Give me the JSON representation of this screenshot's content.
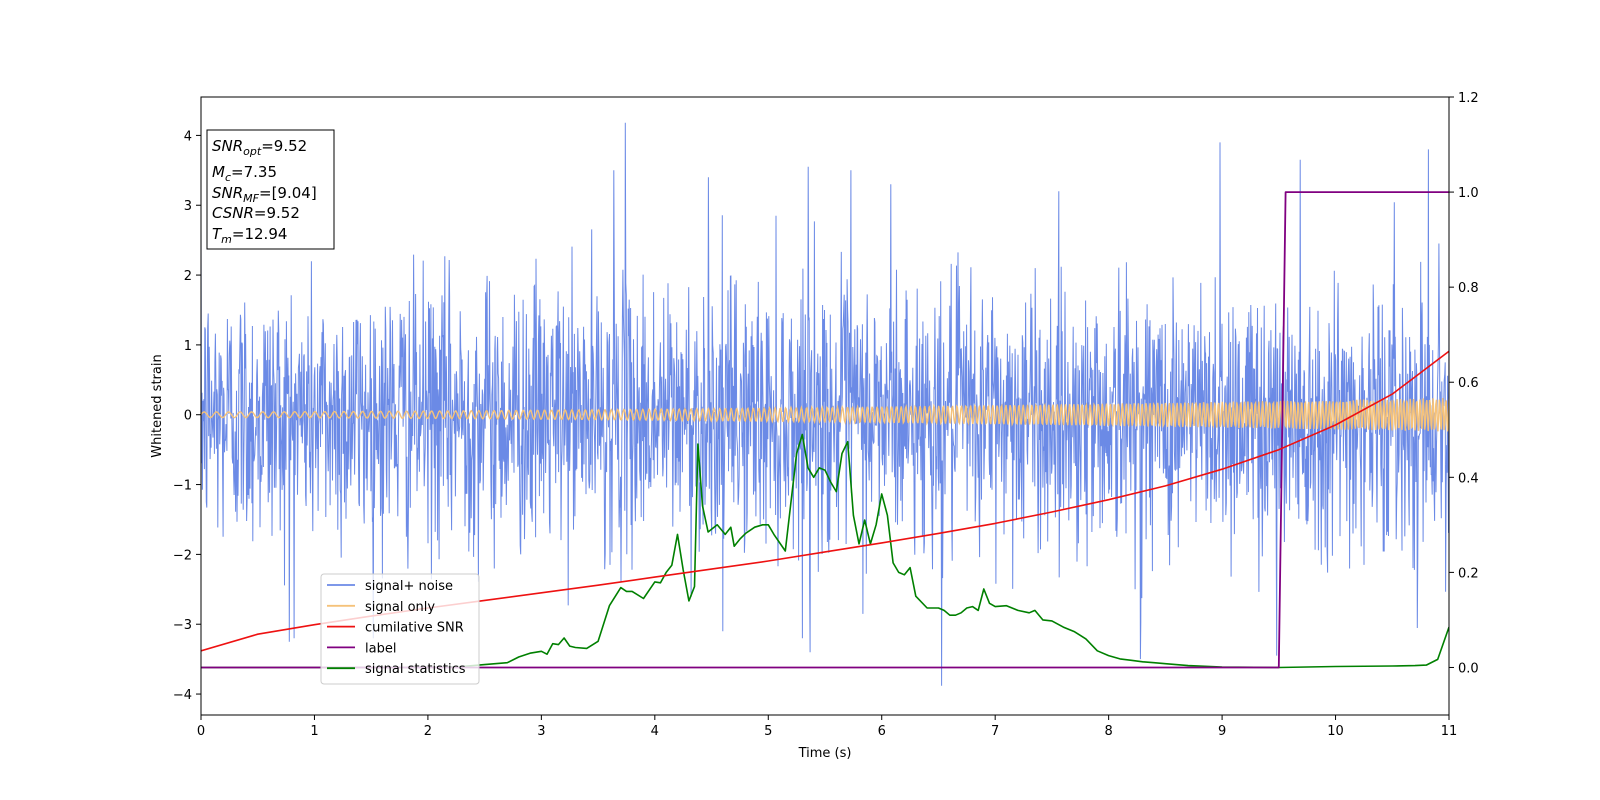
{
  "chart_data": {
    "type": "line",
    "xlabel": "Time (s)",
    "ylabel": "Whitened strain",
    "xlim": [
      0,
      11
    ],
    "ylim_left": [
      -4.3,
      4.55
    ],
    "ylim_right": [
      -0.1,
      1.2
    ],
    "x_ticks": [
      0,
      1,
      2,
      3,
      4,
      5,
      6,
      7,
      8,
      9,
      10,
      11
    ],
    "y_ticks_left": [
      -4,
      -3,
      -2,
      -1,
      0,
      1,
      2,
      3,
      4
    ],
    "y_ticks_right": [
      "0.0",
      "0.2",
      "0.4",
      "0.6",
      "0.8",
      "1.0",
      "1.2"
    ],
    "legend_position": "lower-left",
    "annotation": {
      "lines": [
        {
          "main": "SNR",
          "sub": "opt",
          "value": "=9.52"
        },
        {
          "main": "M",
          "sub": "c",
          "value": "=7.35"
        },
        {
          "main": "SNR",
          "sub": "MF",
          "value": "=[9.04]"
        },
        {
          "main": "CSNR",
          "sub": "",
          "value": "=9.52"
        },
        {
          "main": "T",
          "sub": "m",
          "value": "=12.94"
        }
      ]
    },
    "series": [
      {
        "name": "signal+ noise",
        "color": "#6b8ae6",
        "axis": "left",
        "description_samples": "noisy strain, envelope approx ±2.5 with spikes to ±4",
        "envelope_pos": 2.3,
        "envelope_neg": -2.3,
        "spikes": [
          {
            "x": 3.74,
            "y": 4.18
          },
          {
            "x": 3.64,
            "y": 3.5
          },
          {
            "x": 4.47,
            "y": 3.4
          },
          {
            "x": 5.35,
            "y": 3.55
          },
          {
            "x": 5.73,
            "y": 3.5
          },
          {
            "x": 6.08,
            "y": 3.3
          },
          {
            "x": 8.98,
            "y": 3.9
          },
          {
            "x": 9.69,
            "y": 3.65
          },
          {
            "x": 10.82,
            "y": 3.8
          },
          {
            "x": 6.53,
            "y": -3.88
          },
          {
            "x": 5.37,
            "y": -3.4
          },
          {
            "x": 8.28,
            "y": -3.5
          },
          {
            "x": 9.48,
            "y": -3.45
          },
          {
            "x": 4.6,
            "y": -3.1
          },
          {
            "x": 0.78,
            "y": -3.25
          }
        ]
      },
      {
        "name": "signal only",
        "color": "#f5c27a",
        "axis": "left",
        "amp_start": 0.04,
        "amp_end": 0.24
      },
      {
        "name": "cumilative SNR",
        "color": "#ee1111",
        "axis": "right",
        "x": [
          0,
          0.5,
          1,
          1.5,
          2,
          2.5,
          3,
          3.5,
          4,
          4.5,
          5,
          5.5,
          6,
          6.5,
          7,
          7.5,
          8,
          8.5,
          9,
          9.5,
          10,
          10.5,
          11
        ],
        "y": [
          0.035,
          0.07,
          0.09,
          0.108,
          0.125,
          0.141,
          0.157,
          0.173,
          0.19,
          0.207,
          0.224,
          0.243,
          0.262,
          0.282,
          0.303,
          0.327,
          0.353,
          0.382,
          0.417,
          0.458,
          0.51,
          0.575,
          0.665
        ]
      },
      {
        "name": "label",
        "color": "#800080",
        "axis": "right",
        "x": [
          0,
          9.5,
          9.56,
          11
        ],
        "y": [
          0,
          0,
          1,
          1
        ]
      },
      {
        "name": "signal statistics",
        "color": "#008000",
        "axis": "right",
        "x": [
          0,
          2.0,
          2.3,
          2.5,
          2.7,
          2.8,
          2.9,
          3.0,
          3.05,
          3.1,
          3.15,
          3.2,
          3.25,
          3.3,
          3.4,
          3.5,
          3.6,
          3.7,
          3.75,
          3.8,
          3.9,
          4.0,
          4.05,
          4.1,
          4.15,
          4.2,
          4.25,
          4.3,
          4.35,
          4.38,
          4.42,
          4.47,
          4.55,
          4.62,
          4.67,
          4.7,
          4.75,
          4.8,
          4.88,
          4.95,
          5.0,
          5.05,
          5.15,
          5.25,
          5.3,
          5.35,
          5.4,
          5.45,
          5.5,
          5.55,
          5.6,
          5.65,
          5.7,
          5.75,
          5.8,
          5.85,
          5.9,
          5.95,
          6.0,
          6.05,
          6.1,
          6.15,
          6.2,
          6.25,
          6.3,
          6.4,
          6.5,
          6.55,
          6.6,
          6.65,
          6.7,
          6.75,
          6.8,
          6.85,
          6.9,
          6.95,
          7.0,
          7.1,
          7.2,
          7.3,
          7.35,
          7.42,
          7.5,
          7.6,
          7.7,
          7.8,
          7.9,
          8.0,
          8.1,
          8.2,
          8.3,
          8.4,
          8.5,
          8.7,
          9.0,
          9.5,
          10.0,
          10.5,
          10.7,
          10.8,
          10.9,
          11.0
        ],
        "y": [
          0,
          0,
          0.002,
          0.006,
          0.01,
          0.022,
          0.03,
          0.034,
          0.028,
          0.05,
          0.048,
          0.062,
          0.045,
          0.042,
          0.04,
          0.055,
          0.13,
          0.168,
          0.16,
          0.16,
          0.145,
          0.18,
          0.178,
          0.2,
          0.215,
          0.28,
          0.205,
          0.14,
          0.17,
          0.47,
          0.34,
          0.285,
          0.3,
          0.28,
          0.295,
          0.255,
          0.27,
          0.282,
          0.295,
          0.3,
          0.3,
          0.28,
          0.245,
          0.45,
          0.49,
          0.42,
          0.4,
          0.42,
          0.415,
          0.39,
          0.37,
          0.45,
          0.475,
          0.32,
          0.26,
          0.31,
          0.26,
          0.3,
          0.365,
          0.32,
          0.22,
          0.2,
          0.195,
          0.21,
          0.15,
          0.125,
          0.125,
          0.12,
          0.11,
          0.11,
          0.115,
          0.125,
          0.128,
          0.12,
          0.165,
          0.135,
          0.128,
          0.13,
          0.12,
          0.115,
          0.12,
          0.1,
          0.098,
          0.085,
          0.075,
          0.06,
          0.035,
          0.025,
          0.018,
          0.015,
          0.012,
          0.01,
          0.008,
          0.004,
          0.001,
          0,
          0.002,
          0.003,
          0.004,
          0.005,
          0.017,
          0.085
        ]
      }
    ]
  }
}
